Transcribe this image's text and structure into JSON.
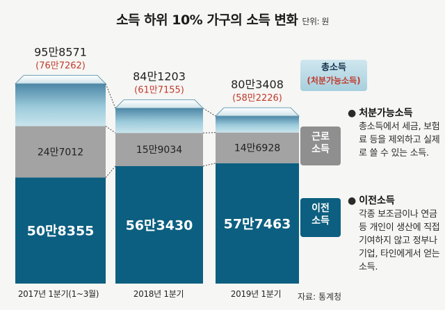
{
  "title": "소득 하위 10% 가구의 소득 변화",
  "unit_label": "단위: 원",
  "chart_data": {
    "type": "bar",
    "stacked": true,
    "categories": [
      "2017년 1분기(1~3월)",
      "2018년 1분기",
      "2019년 1분기"
    ],
    "series": [
      {
        "name": "이전소득",
        "values": [
          508355,
          563430,
          577463
        ],
        "labels": [
          "50만8355",
          "56만3430",
          "57만7463"
        ],
        "color": "#0c5f80"
      },
      {
        "name": "근로소득",
        "values": [
          247012,
          159034,
          146928
        ],
        "labels": [
          "24만7012",
          "15만9034",
          "14만6928"
        ],
        "color": "#a3a3a3"
      },
      {
        "name": "총소득",
        "values": [
          958571,
          841203,
          803408
        ],
        "labels": [
          "95만8571",
          "84만1203",
          "80만3408"
        ],
        "color": "#a9d3df"
      }
    ],
    "disposable_income": {
      "name": "처분가능소득",
      "values": [
        767262,
        617155,
        582226
      ],
      "labels": [
        "(76만7262)",
        "(61만7155)",
        "(58만2226)"
      ],
      "color": "#c0392b"
    }
  },
  "legend": {
    "total_line1": "총소득",
    "total_line2": "(처분가능소득)",
    "labor_line1": "근로",
    "labor_line2": "소득",
    "transfer_line1": "이전",
    "transfer_line2": "소득"
  },
  "notes": {
    "disposable_heading": "처분가능소득",
    "disposable_body": "총소득에서 세금, 보험료 등을 제외하고 실제로 쓸 수 있는 소득.",
    "transfer_heading": "이전소득",
    "transfer_body": "각종 보조금이나 연금 등 개인이 생산에 직접 기여하지 않고 정부나 기업, 타인에게서 얻는 소득."
  },
  "source": "자료: 통계청"
}
